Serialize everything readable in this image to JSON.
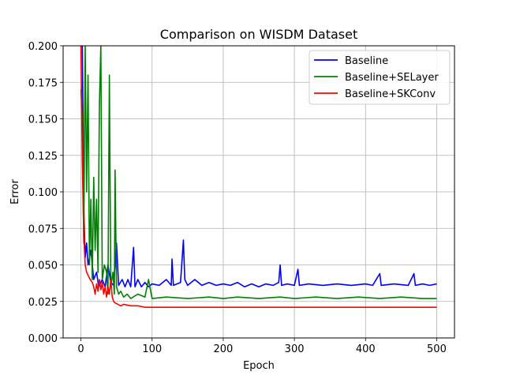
{
  "chart_data": {
    "type": "line",
    "title": "Comparison on WISDM Dataset",
    "xlabel": "Epoch",
    "ylabel": "Error",
    "xlim": [
      -25,
      525
    ],
    "ylim": [
      0.0,
      0.2
    ],
    "xticks": [
      0,
      100,
      200,
      300,
      400,
      500
    ],
    "yticks": [
      0.0,
      0.025,
      0.05,
      0.075,
      0.1,
      0.125,
      0.15,
      0.175,
      0.2
    ],
    "ytick_labels": [
      "0.000",
      "0.025",
      "0.050",
      "0.075",
      "0.100",
      "0.125",
      "0.150",
      "0.175",
      "0.200"
    ],
    "grid": true,
    "legend_position": "upper-right",
    "series": [
      {
        "name": "Baseline",
        "color": "#0000ff",
        "points": [
          [
            0,
            0.2
          ],
          [
            2,
            0.2
          ],
          [
            4,
            0.09
          ],
          [
            6,
            0.055
          ],
          [
            8,
            0.065
          ],
          [
            10,
            0.05
          ],
          [
            14,
            0.06
          ],
          [
            18,
            0.04
          ],
          [
            22,
            0.045
          ],
          [
            25,
            0.035
          ],
          [
            30,
            0.04
          ],
          [
            34,
            0.035
          ],
          [
            38,
            0.05
          ],
          [
            42,
            0.038
          ],
          [
            46,
            0.036
          ],
          [
            50,
            0.065
          ],
          [
            53,
            0.036
          ],
          [
            58,
            0.04
          ],
          [
            62,
            0.035
          ],
          [
            66,
            0.04
          ],
          [
            70,
            0.035
          ],
          [
            74,
            0.062
          ],
          [
            76,
            0.035
          ],
          [
            80,
            0.04
          ],
          [
            85,
            0.035
          ],
          [
            90,
            0.038
          ],
          [
            95,
            0.035
          ],
          [
            100,
            0.037
          ],
          [
            110,
            0.036
          ],
          [
            120,
            0.04
          ],
          [
            127,
            0.036
          ],
          [
            128,
            0.054
          ],
          [
            130,
            0.036
          ],
          [
            140,
            0.038
          ],
          [
            144,
            0.067
          ],
          [
            146,
            0.04
          ],
          [
            150,
            0.036
          ],
          [
            160,
            0.04
          ],
          [
            170,
            0.036
          ],
          [
            180,
            0.038
          ],
          [
            190,
            0.036
          ],
          [
            200,
            0.037
          ],
          [
            210,
            0.036
          ],
          [
            220,
            0.038
          ],
          [
            230,
            0.035
          ],
          [
            240,
            0.037
          ],
          [
            250,
            0.035
          ],
          [
            260,
            0.037
          ],
          [
            270,
            0.036
          ],
          [
            278,
            0.038
          ],
          [
            280,
            0.05
          ],
          [
            282,
            0.036
          ],
          [
            290,
            0.037
          ],
          [
            300,
            0.036
          ],
          [
            305,
            0.047
          ],
          [
            307,
            0.036
          ],
          [
            320,
            0.037
          ],
          [
            340,
            0.036
          ],
          [
            360,
            0.037
          ],
          [
            380,
            0.036
          ],
          [
            400,
            0.037
          ],
          [
            410,
            0.036
          ],
          [
            420,
            0.044
          ],
          [
            422,
            0.036
          ],
          [
            440,
            0.037
          ],
          [
            460,
            0.036
          ],
          [
            468,
            0.044
          ],
          [
            470,
            0.036
          ],
          [
            480,
            0.037
          ],
          [
            490,
            0.036
          ],
          [
            500,
            0.037
          ]
        ]
      },
      {
        "name": "Baseline+SELayer",
        "color": "#008000",
        "points": [
          [
            0,
            0.17
          ],
          [
            2,
            0.15
          ],
          [
            4,
            0.065
          ],
          [
            6,
            0.2
          ],
          [
            8,
            0.1
          ],
          [
            10,
            0.18
          ],
          [
            12,
            0.05
          ],
          [
            14,
            0.095
          ],
          [
            16,
            0.04
          ],
          [
            18,
            0.11
          ],
          [
            20,
            0.06
          ],
          [
            22,
            0.095
          ],
          [
            24,
            0.045
          ],
          [
            26,
            0.16
          ],
          [
            28,
            0.2
          ],
          [
            30,
            0.04
          ],
          [
            33,
            0.05
          ],
          [
            36,
            0.045
          ],
          [
            38,
            0.03
          ],
          [
            40,
            0.18
          ],
          [
            42,
            0.035
          ],
          [
            45,
            0.045
          ],
          [
            47,
            0.03
          ],
          [
            48,
            0.115
          ],
          [
            50,
            0.035
          ],
          [
            53,
            0.03
          ],
          [
            56,
            0.032
          ],
          [
            60,
            0.028
          ],
          [
            65,
            0.03
          ],
          [
            70,
            0.027
          ],
          [
            80,
            0.03
          ],
          [
            90,
            0.028
          ],
          [
            95,
            0.04
          ],
          [
            100,
            0.027
          ],
          [
            120,
            0.028
          ],
          [
            150,
            0.027
          ],
          [
            180,
            0.028
          ],
          [
            200,
            0.027
          ],
          [
            220,
            0.028
          ],
          [
            250,
            0.027
          ],
          [
            280,
            0.028
          ],
          [
            300,
            0.027
          ],
          [
            330,
            0.028
          ],
          [
            360,
            0.027
          ],
          [
            390,
            0.028
          ],
          [
            420,
            0.027
          ],
          [
            450,
            0.028
          ],
          [
            480,
            0.027
          ],
          [
            500,
            0.027
          ]
        ]
      },
      {
        "name": "Baseline+SKConv",
        "color": "#ff0000",
        "points": [
          [
            0,
            0.2
          ],
          [
            2,
            0.12
          ],
          [
            4,
            0.07
          ],
          [
            6,
            0.05
          ],
          [
            8,
            0.045
          ],
          [
            10,
            0.043
          ],
          [
            13,
            0.04
          ],
          [
            16,
            0.038
          ],
          [
            18,
            0.035
          ],
          [
            20,
            0.03
          ],
          [
            22,
            0.037
          ],
          [
            24,
            0.032
          ],
          [
            26,
            0.04
          ],
          [
            28,
            0.033
          ],
          [
            30,
            0.038
          ],
          [
            32,
            0.03
          ],
          [
            34,
            0.035
          ],
          [
            36,
            0.028
          ],
          [
            38,
            0.035
          ],
          [
            40,
            0.03
          ],
          [
            42,
            0.04
          ],
          [
            44,
            0.028
          ],
          [
            46,
            0.025
          ],
          [
            48,
            0.024
          ],
          [
            52,
            0.023
          ],
          [
            56,
            0.022
          ],
          [
            60,
            0.023
          ],
          [
            70,
            0.022
          ],
          [
            80,
            0.022
          ],
          [
            90,
            0.021
          ],
          [
            100,
            0.021
          ],
          [
            120,
            0.021
          ],
          [
            150,
            0.021
          ],
          [
            180,
            0.021
          ],
          [
            200,
            0.021
          ],
          [
            220,
            0.021
          ],
          [
            250,
            0.021
          ],
          [
            280,
            0.021
          ],
          [
            300,
            0.021
          ],
          [
            330,
            0.021
          ],
          [
            360,
            0.021
          ],
          [
            390,
            0.021
          ],
          [
            420,
            0.021
          ],
          [
            450,
            0.021
          ],
          [
            480,
            0.021
          ],
          [
            500,
            0.021
          ]
        ]
      }
    ]
  }
}
